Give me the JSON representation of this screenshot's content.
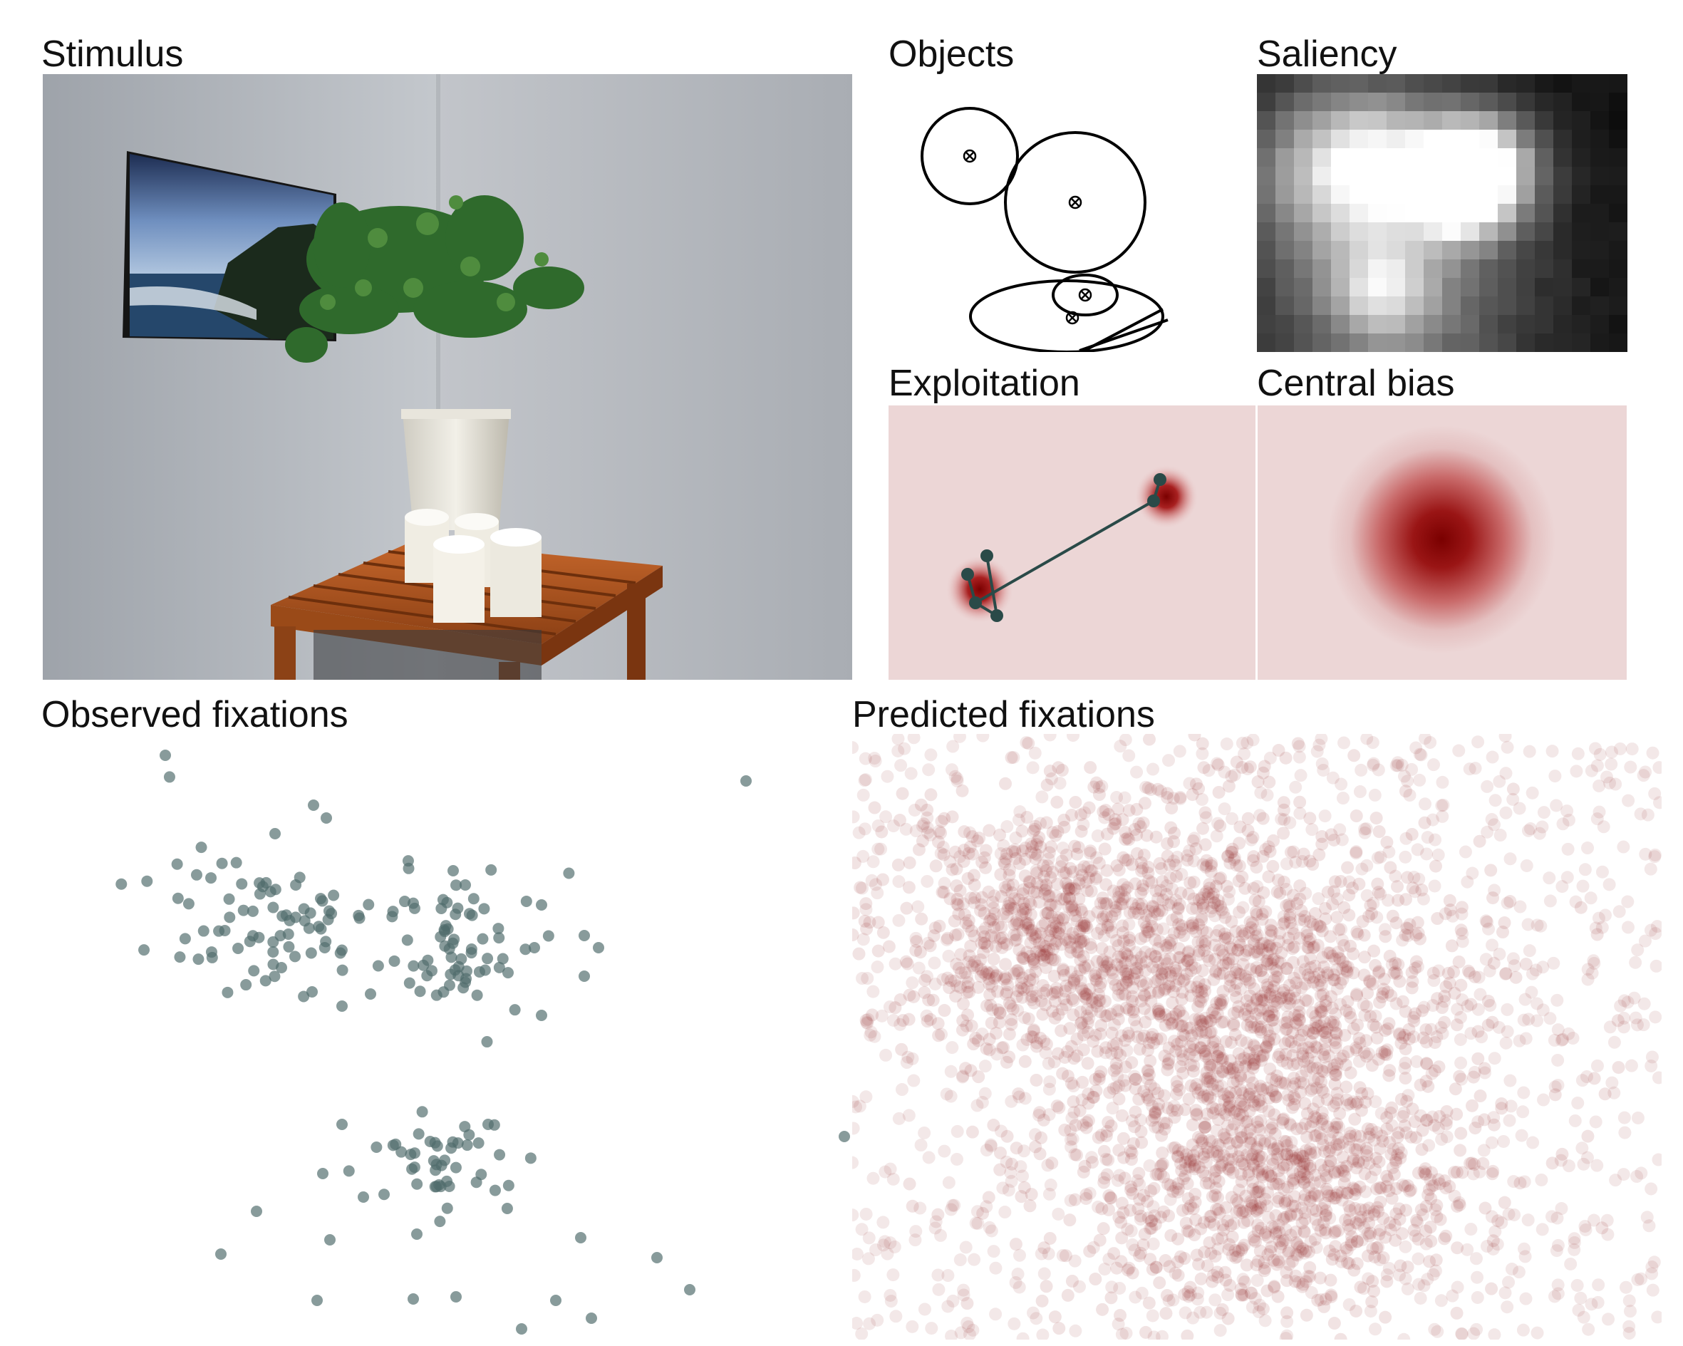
{
  "labels": {
    "stimulus": "Stimulus",
    "objects": "Objects",
    "saliency": "Saliency",
    "exploitation": "Exploitation",
    "central_bias": "Central bias",
    "observed": "Observed fixations",
    "predicted": "Predicted fixations"
  },
  "colors": {
    "observed_point": "#4f6b6b",
    "predicted_point": "#8b1a1a",
    "heat_peak": "#7a0000",
    "heat_bg": "#ecd6d6",
    "scanpath": "#2a4a48"
  },
  "icons": [
    "object-center-marker-icon"
  ]
}
